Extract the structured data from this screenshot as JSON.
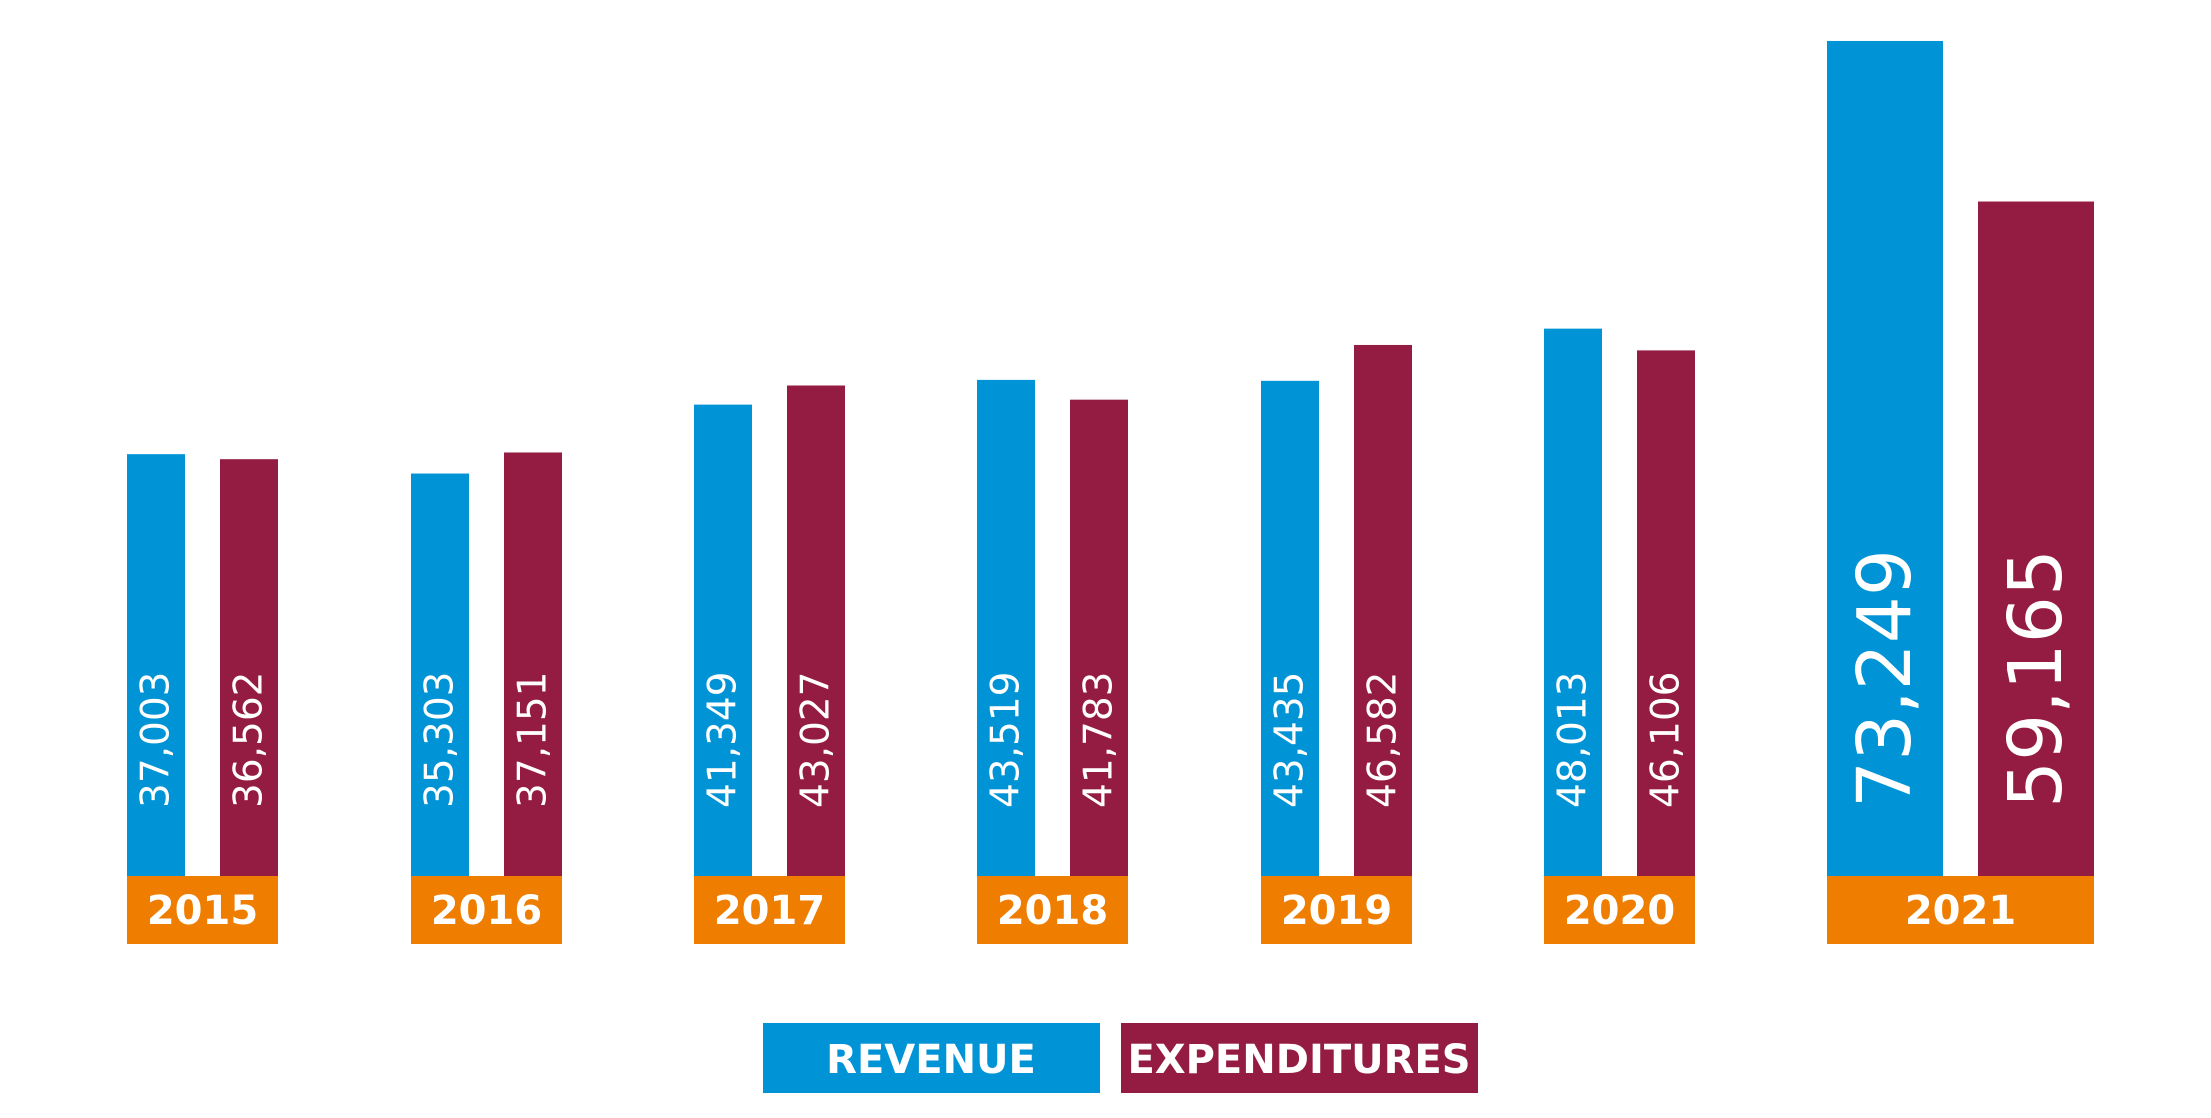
{
  "chart_data": {
    "type": "bar",
    "title": "",
    "xlabel": "",
    "ylabel": "",
    "ylim": [
      0,
      75000
    ],
    "grid": false,
    "legend_position": "bottom-center",
    "categories": [
      "2015",
      "2016",
      "2017",
      "2018",
      "2019",
      "2020",
      "2021"
    ],
    "series": [
      {
        "name": "REVENUE",
        "color": "#0093d5",
        "values": [
          37003,
          35303,
          41349,
          43519,
          43435,
          48013,
          73249
        ],
        "labels": [
          "37,003",
          "35,303",
          "41,349",
          "43,519",
          "43,435",
          "48,013",
          "73,249"
        ]
      },
      {
        "name": "EXPENDITURES",
        "color": "#941c42",
        "values": [
          36562,
          37151,
          43027,
          41783,
          46582,
          46106,
          59165
        ],
        "labels": [
          "36,562",
          "37,151",
          "43,027",
          "41,783",
          "46,582",
          "46,106",
          "59,165"
        ]
      }
    ],
    "category_label_color": "#ef7d00"
  }
}
